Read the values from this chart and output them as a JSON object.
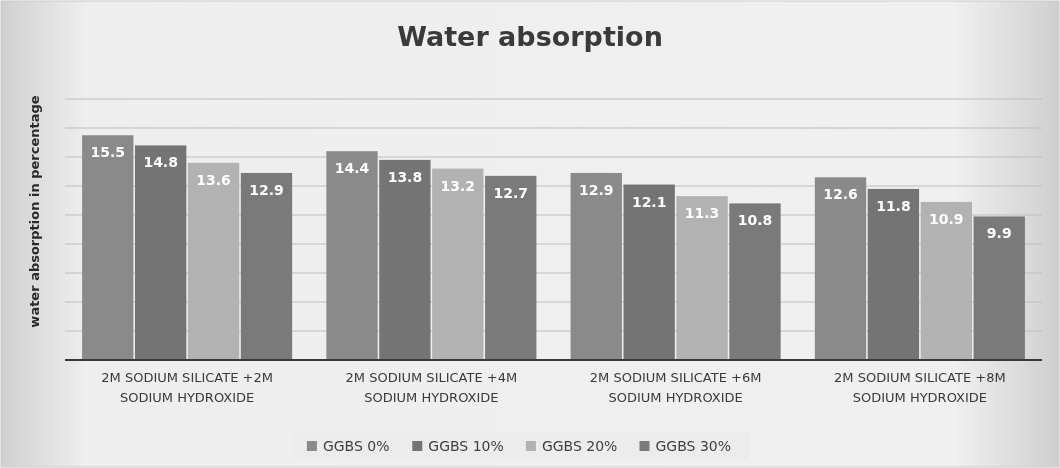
{
  "chart_data": {
    "type": "bar",
    "title": "Water absorption",
    "ylabel": "water absorption in percentage",
    "categories": [
      "2M SODIUM SILICATE +2M SODIUM HYDROXIDE",
      "2M SODIUM SILICATE +4M SODIUM HYDROXIDE",
      "2M SODIUM SILICATE +6M SODIUM HYDROXIDE",
      "2M SODIUM SILICATE +8M SODIUM HYDROXIDE"
    ],
    "series": [
      {
        "name": "GGBS 0%",
        "color": "#8a8a8a",
        "values": [
          15.5,
          14.4,
          12.9,
          12.6
        ]
      },
      {
        "name": "GGBS 10%",
        "color": "#747474",
        "values": [
          14.8,
          13.8,
          12.1,
          11.8
        ]
      },
      {
        "name": "GGBS 20%",
        "color": "#b2b2b2",
        "values": [
          13.6,
          13.2,
          11.3,
          10.9
        ]
      },
      {
        "name": "GGBS 30%",
        "color": "#7a7a7a",
        "values": [
          12.9,
          12.7,
          10.8,
          9.9
        ]
      }
    ],
    "ylim": [
      0,
      18
    ],
    "yticks": [
      {
        "value": 0,
        "label": null
      },
      {
        "value": 2,
        "label": null
      },
      {
        "value": 4,
        "label": null
      },
      {
        "value": 6,
        "label": null
      },
      {
        "value": 8,
        "label": null
      },
      {
        "value": 10,
        "label": null
      },
      {
        "value": 12,
        "label": null
      },
      {
        "value": 14,
        "label": null
      },
      {
        "value": 16,
        "label": null
      },
      {
        "value": 18,
        "label": null
      }
    ],
    "tick_labels": "x",
    "grid": "y",
    "legend": "bottom",
    "data_labels": true
  }
}
